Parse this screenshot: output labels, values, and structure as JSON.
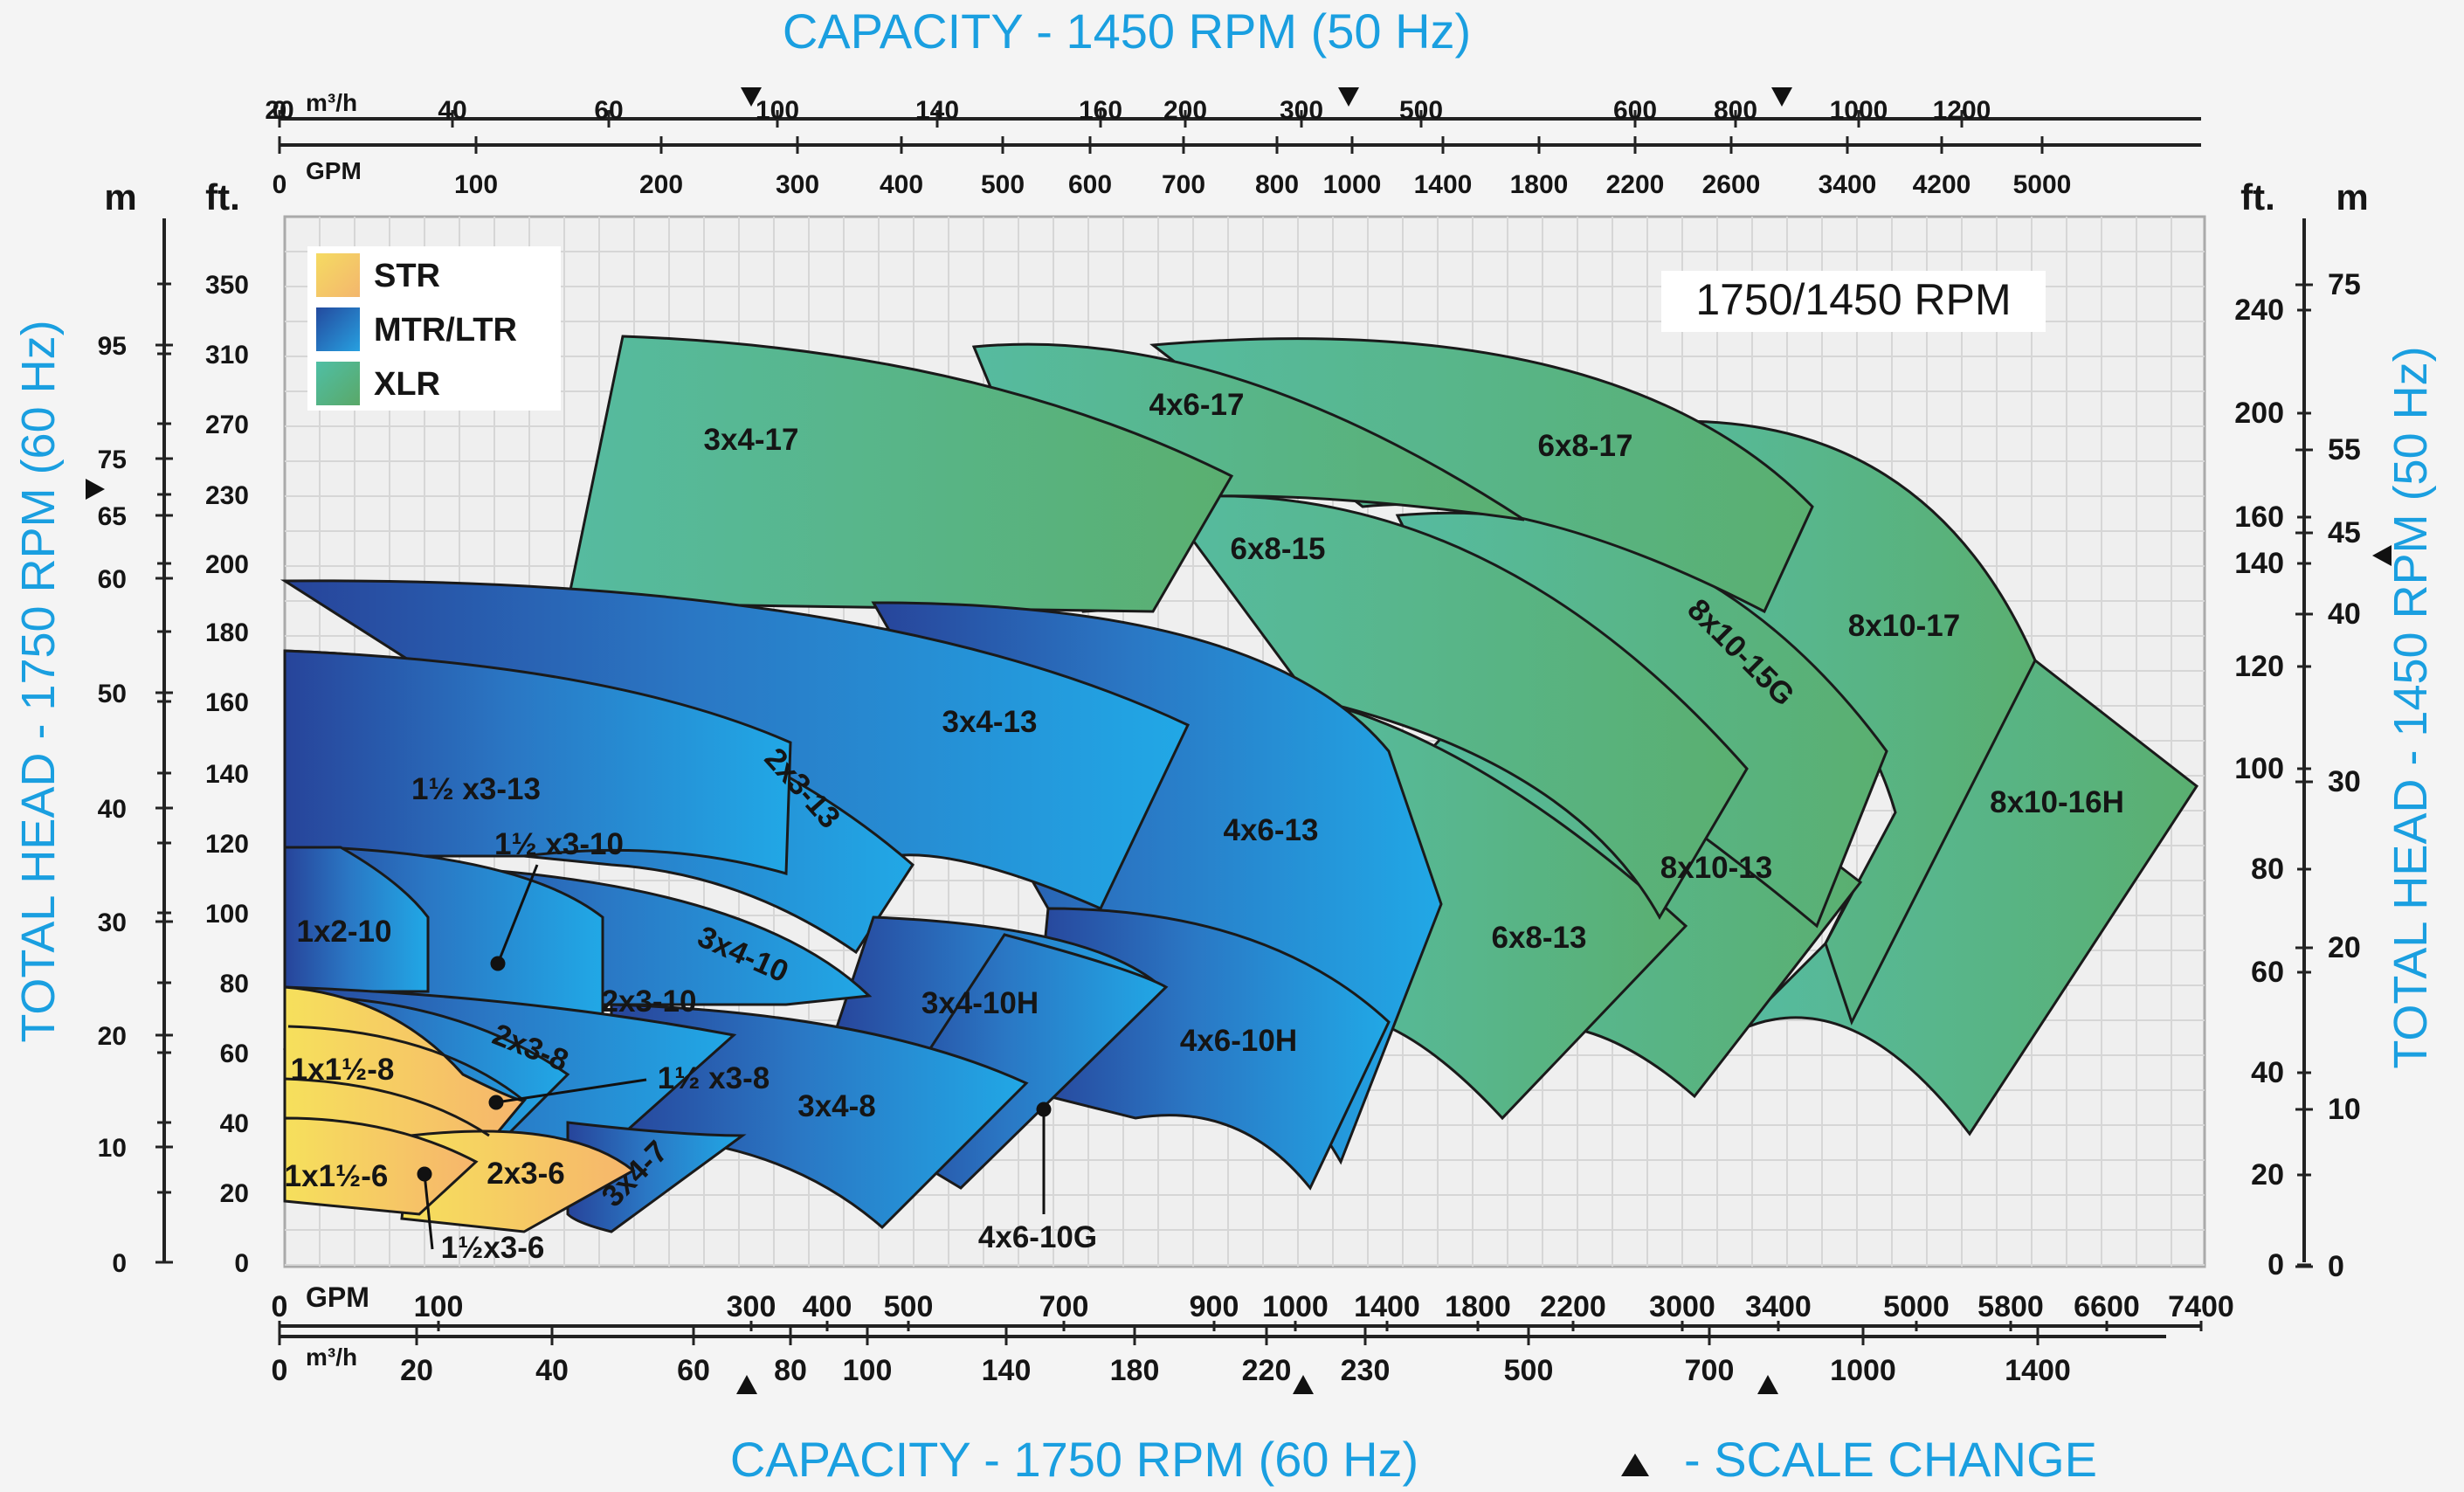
{
  "chart_data": {
    "type": "area",
    "title": "CAPACITY - 1450 RPM (50 Hz)",
    "xlabel": "CAPACITY - 1750 RPM (60 Hz)",
    "ylabel": "TOTAL HEAD - 1750 RPM (60 Hz)",
    "ylabel_right": "TOTAL HEAD - 1450 RPM (50 Hz)",
    "scale_change_label": "- SCALE CHANGE",
    "speed_label": "1750/1450 RPM",
    "grid": true,
    "legend_position": "top-left",
    "legend": [
      {
        "name": "STR",
        "color": "#f1c64e"
      },
      {
        "name": "MTR/LTR",
        "color": "#2466b6"
      },
      {
        "name": "XLR",
        "color": "#56b587"
      }
    ],
    "ylim_ft": [
      0,
      390
    ],
    "axes": {
      "top_unit_m3h": "m³/h",
      "top_unit_gpm": "GPM",
      "bottom_unit_gpm": "GPM",
      "bottom_unit_m3h": "m³/h",
      "left_unit_m": "m",
      "left_unit_ft": "ft.",
      "right_unit_ft": "ft.",
      "right_unit_m": "m",
      "top_m3h_ticks": [
        "0",
        "20",
        "40",
        "60",
        "100",
        "140",
        "160",
        "200",
        "300",
        "500",
        "600",
        "800",
        "1000",
        "1200"
      ],
      "top_gpm_ticks": [
        "0",
        "100",
        "200",
        "300",
        "400",
        "500",
        "600",
        "700",
        "800",
        "1000",
        "1400",
        "1800",
        "2200",
        "2600",
        "3400",
        "4200",
        "5000"
      ],
      "bottom_gpm_ticks": [
        "0",
        "100",
        "300",
        "400",
        "500",
        "700",
        "900",
        "1000",
        "1400",
        "1800",
        "2200",
        "3000",
        "3400",
        "5000",
        "5800",
        "6600",
        "7400"
      ],
      "bottom_m3h_ticks": [
        "0",
        "20",
        "40",
        "60",
        "80",
        "100",
        "140",
        "180",
        "220",
        "230",
        "500",
        "700",
        "1000",
        "1400"
      ],
      "left_m_ticks": [
        "0",
        "10",
        "20",
        "30",
        "40",
        "50",
        "60",
        "65",
        "75",
        "95"
      ],
      "left_ft_ticks": [
        "0",
        "20",
        "40",
        "60",
        "80",
        "100",
        "120",
        "140",
        "160",
        "180",
        "200",
        "230",
        "270",
        "310",
        "350"
      ],
      "right_ft_ticks": [
        "0",
        "20",
        "40",
        "60",
        "80",
        "100",
        "120",
        "140",
        "160",
        "200",
        "240"
      ],
      "right_m_ticks": [
        "0",
        "10",
        "20",
        "30",
        "40",
        "45",
        "55",
        "75"
      ]
    },
    "series": [
      {
        "name": "3x4-17",
        "family": "XLR"
      },
      {
        "name": "4x6-17",
        "family": "XLR"
      },
      {
        "name": "6x8-17",
        "family": "XLR"
      },
      {
        "name": "8x10-17",
        "family": "XLR"
      },
      {
        "name": "6x8-15",
        "family": "XLR"
      },
      {
        "name": "8x10-15G",
        "family": "XLR"
      },
      {
        "name": "8x10-16H",
        "family": "XLR"
      },
      {
        "name": "8x10-13",
        "family": "XLR"
      },
      {
        "name": "6x8-13",
        "family": "XLR"
      },
      {
        "name": "1½ x3-13",
        "family": "MTR/LTR"
      },
      {
        "name": "2x3-13",
        "family": "MTR/LTR"
      },
      {
        "name": "3x4-13",
        "family": "MTR/LTR"
      },
      {
        "name": "4x6-13",
        "family": "MTR/LTR"
      },
      {
        "name": "1½ x3-10",
        "family": "MTR/LTR"
      },
      {
        "name": "1x2-10",
        "family": "MTR/LTR"
      },
      {
        "name": "2x3-10",
        "family": "MTR/LTR"
      },
      {
        "name": "3x4-10",
        "family": "MTR/LTR"
      },
      {
        "name": "3x4-10H",
        "family": "MTR/LTR"
      },
      {
        "name": "4x6-10H",
        "family": "MTR/LTR"
      },
      {
        "name": "4x6-10G",
        "family": "MTR/LTR"
      },
      {
        "name": "2x3-8",
        "family": "MTR/LTR"
      },
      {
        "name": "1½ x3-8",
        "family": "MTR/LTR"
      },
      {
        "name": "3x4-8",
        "family": "MTR/LTR"
      },
      {
        "name": "3x4-7",
        "family": "MTR/LTR"
      },
      {
        "name": "1x1½-8",
        "family": "STR"
      },
      {
        "name": "1x1½-6",
        "family": "STR"
      },
      {
        "name": "2x3-6",
        "family": "STR"
      },
      {
        "name": "1½x3-6",
        "family": "STR"
      }
    ]
  }
}
